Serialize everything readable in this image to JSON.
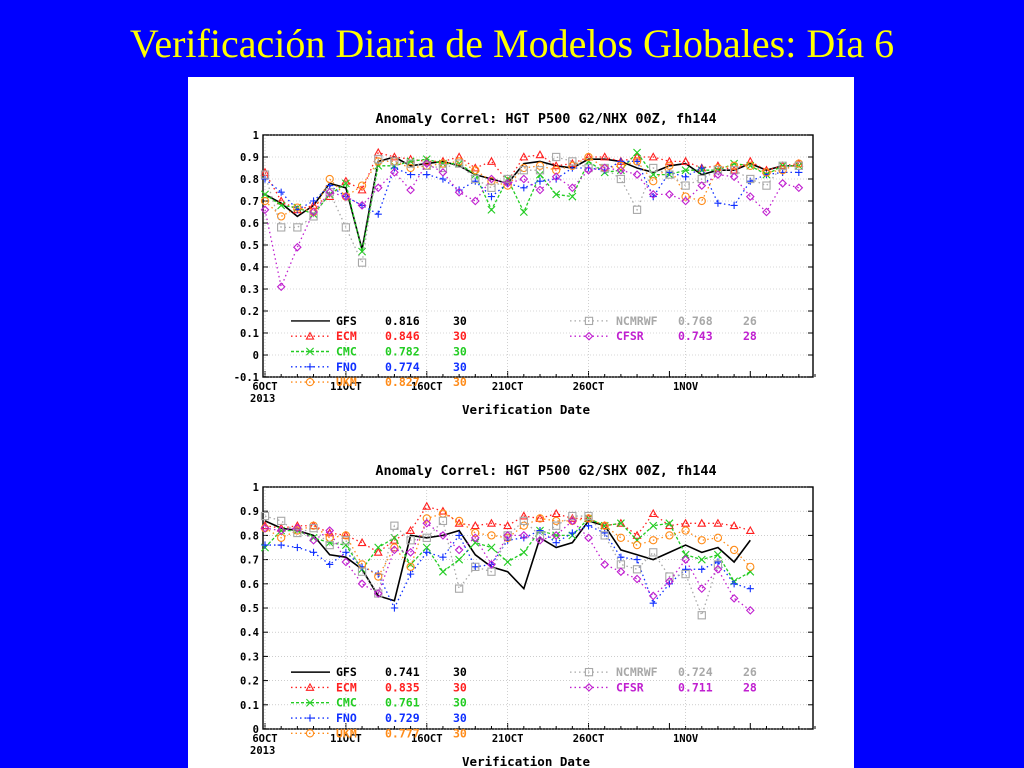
{
  "slide": {
    "title": "Verificación Diaria de Modelos Globales: Día 6"
  },
  "colors": {
    "GFS": "#000000",
    "ECM": "#ff2020",
    "CMC": "#22cc22",
    "FNO": "#1030ff",
    "UKM": "#ff8c1a",
    "NCMRWF": "#a8a8a8",
    "CFSR": "#c020d0"
  },
  "chart_data": [
    {
      "type": "line",
      "title": "Anomaly Correl: HGT P500 G2/NHX 00Z, fh144",
      "xlabel": "Verification Date",
      "x_start": "2013-10-06",
      "x_ticks": [
        "6OCT",
        "11OCT",
        "16OCT",
        "21OCT",
        "26OCT",
        "1NOV"
      ],
      "x_year": "2013",
      "ylim": [
        -0.1,
        1
      ],
      "y_ticks": [
        "-0.1",
        "0",
        "0.1",
        "0.2",
        "0.3",
        "0.4",
        "0.5",
        "0.6",
        "0.7",
        "0.8",
        "0.9",
        "1"
      ],
      "legend_left": [
        {
          "model": "GFS",
          "score": "0.816",
          "count": "30"
        },
        {
          "model": "ECM",
          "score": "0.846",
          "count": "30"
        },
        {
          "model": "CMC",
          "score": "0.782",
          "count": "30"
        },
        {
          "model": "FNO",
          "score": "0.774",
          "count": "30"
        },
        {
          "model": "UKM",
          "score": "0.827",
          "count": "30"
        }
      ],
      "legend_right": [
        {
          "model": "NCMRWF",
          "score": "0.768",
          "count": "26"
        },
        {
          "model": "CFSR",
          "score": "0.743",
          "count": "28"
        }
      ],
      "series": [
        {
          "name": "GFS",
          "values": [
            0.73,
            0.69,
            0.63,
            0.68,
            0.78,
            0.76,
            0.48,
            0.88,
            0.9,
            0.86,
            0.87,
            0.88,
            0.86,
            0.82,
            0.8,
            0.78,
            0.87,
            0.88,
            0.86,
            0.85,
            0.89,
            0.89,
            0.88,
            0.85,
            0.83,
            0.86,
            0.87,
            0.82,
            0.84,
            0.84,
            0.87,
            0.84,
            0.86,
            0.86
          ]
        },
        {
          "name": "ECM",
          "values": [
            0.83,
            0.7,
            0.66,
            0.68,
            0.72,
            0.79,
            0.75,
            0.92,
            0.9,
            0.89,
            0.88,
            0.88,
            0.9,
            0.85,
            0.88,
            0.79,
            0.9,
            0.91,
            0.86,
            0.87,
            0.9,
            0.9,
            0.88,
            0.9,
            0.9,
            0.88,
            0.88,
            0.85,
            0.86,
            0.84,
            0.88,
            0.84,
            0.86,
            0.87
          ]
        },
        {
          "name": "CMC",
          "values": [
            0.73,
            0.68,
            0.67,
            0.64,
            0.73,
            0.78,
            0.47,
            0.86,
            0.86,
            0.88,
            0.89,
            0.87,
            0.87,
            0.82,
            0.66,
            0.8,
            0.65,
            0.82,
            0.73,
            0.72,
            0.88,
            0.83,
            0.84,
            0.92,
            0.82,
            0.82,
            0.84,
            0.84,
            0.84,
            0.87,
            0.86,
            0.82,
            0.86,
            0.86
          ]
        },
        {
          "name": "FNO",
          "values": [
            0.8,
            0.74,
            0.66,
            0.7,
            0.77,
            0.72,
            0.68,
            0.64,
            0.85,
            0.82,
            0.82,
            0.8,
            0.75,
            0.79,
            0.72,
            0.78,
            0.76,
            0.79,
            0.8,
            0.85,
            0.85,
            0.84,
            0.88,
            0.88,
            0.72,
            0.83,
            0.81,
            0.85,
            0.69,
            0.68,
            0.79,
            0.82,
            0.83,
            0.83
          ]
        },
        {
          "name": "UKM",
          "values": [
            0.7,
            0.63,
            0.67,
            0.65,
            0.8,
            0.72,
            0.77,
            0.88,
            0.88,
            0.85,
            0.86,
            0.87,
            0.88,
            0.84,
            0.79,
            0.77,
            0.85,
            0.86,
            0.84,
            0.86,
            0.9,
            0.85,
            0.86,
            0.88,
            0.79,
            0.86,
            0.72,
            0.7,
            0.85,
            0.86,
            0.86,
            0.83,
            0.84,
            0.87
          ]
        },
        {
          "name": "NCMRWF",
          "values": [
            0.82,
            0.58,
            0.58,
            0.63,
            0.74,
            0.58,
            0.42,
            0.89,
            0.88,
            0.87,
            0.86,
            0.85,
            0.87,
            0.8,
            0.76,
            0.8,
            0.84,
            0.84,
            0.9,
            0.88,
            0.85,
            0.85,
            0.8,
            0.66,
            0.85,
            0.82,
            0.77,
            0.8,
            0.84,
            0.84,
            0.8,
            0.77,
            0.86,
            0.86
          ]
        },
        {
          "name": "CFSR",
          "values": [
            0.66,
            0.31,
            0.49,
            0.65,
            0.74,
            0.72,
            0.68,
            0.76,
            0.83,
            0.75,
            0.87,
            0.83,
            0.74,
            0.7,
            0.8,
            0.78,
            0.8,
            0.75,
            0.81,
            0.76,
            0.84,
            0.85,
            0.84,
            0.82,
            0.73,
            0.73,
            0.7,
            0.77,
            0.82,
            0.81,
            0.72,
            0.65,
            0.78,
            0.76
          ]
        }
      ]
    },
    {
      "type": "line",
      "title": "Anomaly Correl: HGT P500 G2/SHX 00Z, fh144",
      "xlabel": "Verification Date",
      "x_start": "2013-10-06",
      "x_ticks": [
        "6OCT",
        "11OCT",
        "16OCT",
        "21OCT",
        "26OCT",
        "1NOV"
      ],
      "x_year": "2013",
      "ylim": [
        0,
        1
      ],
      "y_ticks": [
        "0",
        "0.1",
        "0.2",
        "0.3",
        "0.4",
        "0.5",
        "0.6",
        "0.7",
        "0.8",
        "0.9",
        "1"
      ],
      "legend_left": [
        {
          "model": "GFS",
          "score": "0.741",
          "count": "30"
        },
        {
          "model": "ECM",
          "score": "0.835",
          "count": "30"
        },
        {
          "model": "CMC",
          "score": "0.761",
          "count": "30"
        },
        {
          "model": "FNO",
          "score": "0.729",
          "count": "30"
        },
        {
          "model": "UKM",
          "score": "0.777",
          "count": "30"
        }
      ],
      "legend_right": [
        {
          "model": "NCMRWF",
          "score": "0.724",
          "count": "26"
        },
        {
          "model": "CFSR",
          "score": "0.711",
          "count": "28"
        }
      ],
      "series": [
        {
          "name": "GFS",
          "values": [
            0.86,
            0.83,
            0.82,
            0.8,
            0.72,
            0.71,
            0.66,
            0.55,
            0.53,
            0.8,
            0.79,
            0.8,
            0.82,
            0.72,
            0.67,
            0.65,
            0.58,
            0.79,
            0.75,
            0.77,
            0.86,
            0.84,
            0.74,
            0.72,
            0.7,
            0.73,
            0.76,
            0.73,
            0.75,
            0.69,
            0.78
          ]
        },
        {
          "name": "ECM",
          "values": [
            0.84,
            0.83,
            0.84,
            0.84,
            0.81,
            0.8,
            0.77,
            0.73,
            0.78,
            0.82,
            0.92,
            0.9,
            0.85,
            0.84,
            0.85,
            0.84,
            0.88,
            0.87,
            0.89,
            0.87,
            0.87,
            0.84,
            0.85,
            0.8,
            0.89,
            0.84,
            0.85,
            0.85,
            0.85,
            0.84,
            0.82
          ]
        },
        {
          "name": "CMC",
          "values": [
            0.75,
            0.82,
            0.82,
            0.79,
            0.77,
            0.76,
            0.66,
            0.75,
            0.79,
            0.68,
            0.75,
            0.65,
            0.7,
            0.77,
            0.75,
            0.69,
            0.73,
            0.82,
            0.8,
            0.8,
            0.87,
            0.84,
            0.85,
            0.78,
            0.84,
            0.85,
            0.72,
            0.7,
            0.72,
            0.61,
            0.65
          ]
        },
        {
          "name": "FNO",
          "values": [
            0.76,
            0.76,
            0.75,
            0.73,
            0.68,
            0.73,
            0.67,
            0.64,
            0.5,
            0.64,
            0.73,
            0.71,
            0.8,
            0.67,
            0.68,
            0.78,
            0.79,
            0.82,
            0.77,
            0.81,
            0.84,
            0.81,
            0.71,
            0.7,
            0.52,
            0.6,
            0.66,
            0.66,
            0.69,
            0.6,
            0.58
          ]
        },
        {
          "name": "UKM",
          "values": [
            0.83,
            0.79,
            0.82,
            0.84,
            0.79,
            0.8,
            0.68,
            0.63,
            0.75,
            0.67,
            0.87,
            0.89,
            0.86,
            0.81,
            0.8,
            0.79,
            0.84,
            0.87,
            0.86,
            0.86,
            0.87,
            0.84,
            0.79,
            0.76,
            0.78,
            0.8,
            0.82,
            0.78,
            0.79,
            0.74,
            0.67
          ]
        },
        {
          "name": "NCMRWF",
          "values": [
            0.88,
            0.86,
            0.81,
            0.83,
            0.76,
            0.78,
            0.65,
            0.56,
            0.84,
            0.78,
            0.79,
            0.86,
            0.58,
            0.67,
            0.65,
            0.8,
            0.86,
            0.8,
            0.84,
            0.88,
            0.88,
            0.8,
            0.68,
            0.66,
            0.73,
            0.63,
            0.64,
            0.47,
            0.68
          ]
        },
        {
          "name": "CFSR",
          "values": [
            0.83,
            0.82,
            0.83,
            0.78,
            0.82,
            0.69,
            0.6,
            0.56,
            0.74,
            0.73,
            0.85,
            0.8,
            0.74,
            0.79,
            0.68,
            0.8,
            0.8,
            0.78,
            0.8,
            0.86,
            0.79,
            0.68,
            0.65,
            0.62,
            0.55,
            0.61,
            0.7,
            0.58,
            0.66,
            0.54,
            0.49
          ]
        }
      ]
    }
  ]
}
